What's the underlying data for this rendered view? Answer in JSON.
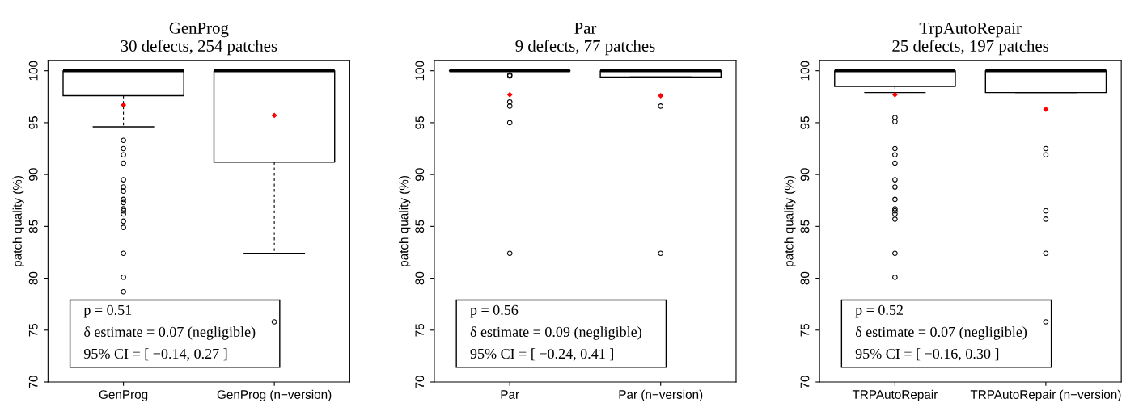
{
  "chart_data": [
    {
      "type": "box",
      "title": "GenProg",
      "subtitle": "30 defects, 254 patches",
      "ylabel": "patch quality (%)",
      "categories": [
        "GenProg",
        "GenProg (n−version)"
      ],
      "ylim": [
        70,
        101
      ],
      "yticks": [
        70,
        75,
        80,
        85,
        90,
        95,
        100
      ],
      "boxes": [
        {
          "low": 94.6,
          "q1": 97.6,
          "median": 100,
          "q3": 100,
          "high": 100,
          "mean": 96.7,
          "outliers": [
            93.3,
            92.5,
            91.9,
            91.1,
            89.5,
            88.8,
            88.4,
            87.6,
            87.3,
            86.7,
            86.5,
            86.2,
            85.5,
            84.9,
            82.4,
            80.1,
            78.7
          ]
        },
        {
          "low": 82.4,
          "q1": 91.2,
          "median": 100,
          "q3": 100,
          "high": 100,
          "mean": 95.7,
          "outliers": [
            75.8
          ]
        }
      ],
      "annotations": [
        "p = 0.51",
        "δ estimate = 0.07 (negligible)",
        "95% CI = [ −0.14, 0.27 ]"
      ]
    },
    {
      "type": "box",
      "title": "Par",
      "subtitle": "9 defects, 77 patches",
      "ylabel": "patch quality (%)",
      "categories": [
        "Par",
        "Par (n−version)"
      ],
      "ylim": [
        70,
        101
      ],
      "yticks": [
        70,
        75,
        80,
        85,
        90,
        95,
        100
      ],
      "boxes": [
        {
          "low": 100,
          "q1": 100,
          "median": 100,
          "q3": 100,
          "high": 100,
          "mean": 97.7,
          "outliers": [
            99.6,
            99.5,
            97.0,
            96.6,
            95.0,
            82.4
          ]
        },
        {
          "low": 99.4,
          "q1": 99.4,
          "median": 100,
          "q3": 100,
          "high": 100,
          "mean": 97.6,
          "outliers": [
            96.6,
            82.4
          ]
        }
      ],
      "annotations": [
        "p = 0.56",
        "δ estimate = 0.09 (negligible)",
        "95% CI = [ −0.24, 0.41 ]"
      ]
    },
    {
      "type": "box",
      "title": "TrpAutoRepair",
      "subtitle": "25 defects, 197 patches",
      "ylabel": "patch quality (%)",
      "categories": [
        "TRPAutoRepair",
        "TRPAutoRepair (n−version)"
      ],
      "ylim": [
        70,
        101
      ],
      "yticks": [
        70,
        75,
        80,
        85,
        90,
        95,
        100
      ],
      "boxes": [
        {
          "low": 97.9,
          "q1": 98.5,
          "median": 100,
          "q3": 100,
          "high": 100,
          "mean": 97.7,
          "outliers": [
            95.5,
            95.1,
            92.5,
            91.9,
            91.1,
            89.5,
            88.8,
            87.6,
            86.7,
            86.5,
            86.2,
            85.7,
            82.4,
            80.1
          ]
        },
        {
          "low": 97.9,
          "q1": 97.9,
          "median": 100,
          "q3": 100,
          "high": 100,
          "mean": 96.3,
          "outliers": [
            92.5,
            91.9,
            86.5,
            85.7,
            82.4,
            75.8
          ]
        }
      ],
      "annotations": [
        "p = 0.52",
        "δ estimate = 0.07 (negligible)",
        "95% CI = [ −0.16, 0.30 ]"
      ]
    }
  ]
}
